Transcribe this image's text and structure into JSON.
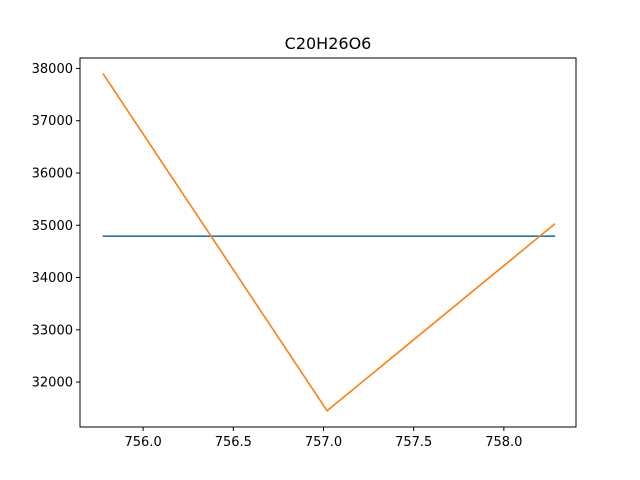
{
  "chart_data": {
    "type": "line",
    "title": "C20H26O6",
    "xlabel": "",
    "ylabel": "",
    "xlim": [
      755.65,
      758.4
    ],
    "ylim": [
      31140,
      38200
    ],
    "grid": false,
    "legend": "none",
    "x_ticks": [
      756.0,
      756.5,
      757.0,
      757.5,
      758.0
    ],
    "x_tick_labels": [
      "756.0",
      "756.5",
      "757.0",
      "757.5",
      "758.0"
    ],
    "y_ticks": [
      32000,
      33000,
      34000,
      35000,
      36000,
      37000,
      38000
    ],
    "y_tick_labels": [
      "32000",
      "33000",
      "34000",
      "35000",
      "36000",
      "37000",
      "38000"
    ],
    "series": [
      {
        "color": "#1f77b4",
        "x": [
          755.78,
          758.28
        ],
        "y": [
          34790,
          34790
        ]
      },
      {
        "color": "#ff7f0e",
        "x": [
          755.78,
          757.02,
          758.28
        ],
        "y": [
          37890,
          31450,
          35020
        ]
      }
    ]
  }
}
